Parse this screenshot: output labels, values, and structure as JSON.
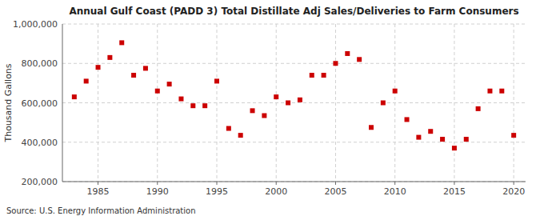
{
  "chart_data": {
    "type": "scatter",
    "title": "Annual Gulf Coast (PADD 3) Total Distillate Adj Sales/Deliveries to Farm Consumers",
    "ylabel": "Thousand Gallons",
    "source": "Source: U.S. Energy Information Administration",
    "x": [
      1983,
      1984,
      1985,
      1986,
      1987,
      1988,
      1989,
      1990,
      1991,
      1992,
      1993,
      1994,
      1995,
      1996,
      1997,
      1998,
      1999,
      2000,
      2001,
      2002,
      2003,
      2004,
      2005,
      2006,
      2007,
      2008,
      2009,
      2010,
      2011,
      2012,
      2013,
      2014,
      2015,
      2016,
      2017,
      2018,
      2019,
      2020
    ],
    "values": [
      630000,
      710000,
      780000,
      830000,
      905000,
      740000,
      775000,
      660000,
      695000,
      620000,
      585000,
      585000,
      710000,
      470000,
      435000,
      560000,
      535000,
      630000,
      600000,
      615000,
      740000,
      740000,
      800000,
      850000,
      820000,
      475000,
      600000,
      660000,
      515000,
      425000,
      455000,
      415000,
      370000,
      415000,
      570000,
      660000,
      660000,
      435000
    ],
    "color": "#cc0000",
    "marker": "square",
    "xlim": [
      1982,
      2021
    ],
    "ylim": [
      200000,
      1000000
    ],
    "xticks": [
      1985,
      1990,
      1995,
      2000,
      2005,
      2010,
      2015,
      2020
    ],
    "yticks": [
      {
        "value": 200000,
        "label": "200,000"
      },
      {
        "value": 400000,
        "label": "400,000"
      },
      {
        "value": 600000,
        "label": "600,000"
      },
      {
        "value": 800000,
        "label": "800,000"
      },
      {
        "value": 1000000,
        "label": "1,000,000"
      }
    ],
    "grid": true
  }
}
